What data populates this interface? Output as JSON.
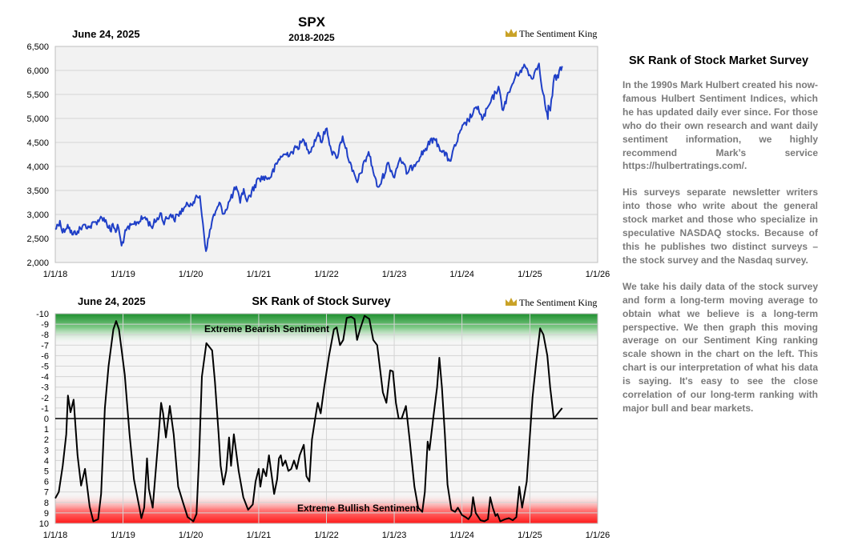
{
  "colors": {
    "price_line": "#1f3fc7",
    "rank_line": "#000000",
    "bear_zone": "#1e8f2e",
    "bull_zone": "#ff1a1a",
    "text_gray": "#7a7a7a",
    "crown": "#c9a227"
  },
  "brand": "The Sentiment King",
  "top_chart": {
    "date": "June 24, 2025",
    "title": "SPX",
    "subtitle": "2018-2025"
  },
  "bottom_chart": {
    "date": "June 24, 2025",
    "title": "SK Rank of Stock Survey",
    "bear_label": "Extreme Bearish Sentiment",
    "bull_label": "Extreme Bullish Sentiment"
  },
  "chart_data": [
    {
      "type": "line",
      "title": "SPX",
      "subtitle": "2018-2025",
      "x_tick_labels": [
        "1/1/18",
        "1/1/19",
        "1/1/20",
        "1/1/21",
        "1/1/22",
        "1/1/23",
        "1/1/24",
        "1/1/25",
        "1/1/26"
      ],
      "y_tick_labels": [
        "2,000",
        "2,500",
        "3,000",
        "3,500",
        "4,000",
        "4,500",
        "5,000",
        "5,500",
        "6,000",
        "6,500"
      ],
      "xlim": [
        "2018-01-01",
        "2026-01-01"
      ],
      "ylim": [
        2000,
        6500
      ],
      "grid": true,
      "series": [
        {
          "points": [
            [
              "2018-01-01",
              2690
            ],
            [
              "2018-01-26",
              2870
            ],
            [
              "2018-02-09",
              2620
            ],
            [
              "2018-03-09",
              2790
            ],
            [
              "2018-04-02",
              2580
            ],
            [
              "2018-05-01",
              2650
            ],
            [
              "2018-06-12",
              2790
            ],
            [
              "2018-07-02",
              2730
            ],
            [
              "2018-08-29",
              2910
            ],
            [
              "2018-09-20",
              2930
            ],
            [
              "2018-10-29",
              2640
            ],
            [
              "2018-11-07",
              2810
            ],
            [
              "2018-11-23",
              2630
            ],
            [
              "2018-12-03",
              2790
            ],
            [
              "2018-12-24",
              2350
            ],
            [
              "2019-01-18",
              2670
            ],
            [
              "2019-03-01",
              2800
            ],
            [
              "2019-04-30",
              2945
            ],
            [
              "2019-06-03",
              2745
            ],
            [
              "2019-07-26",
              3025
            ],
            [
              "2019-08-05",
              2845
            ],
            [
              "2019-09-15",
              3005
            ],
            [
              "2019-10-02",
              2890
            ],
            [
              "2019-11-25",
              3135
            ],
            [
              "2019-12-31",
              3230
            ],
            [
              "2020-02-19",
              3385
            ],
            [
              "2020-03-23",
              2235
            ],
            [
              "2020-04-29",
              2940
            ],
            [
              "2020-06-08",
              3230
            ],
            [
              "2020-06-26",
              3010
            ],
            [
              "2020-09-02",
              3580
            ],
            [
              "2020-09-23",
              3240
            ],
            [
              "2020-10-12",
              3535
            ],
            [
              "2020-10-30",
              3270
            ],
            [
              "2020-12-31",
              3756
            ],
            [
              "2021-03-04",
              3770
            ],
            [
              "2021-04-29",
              4210
            ],
            [
              "2021-06-30",
              4300
            ],
            [
              "2021-09-02",
              4540
            ],
            [
              "2021-10-04",
              4300
            ],
            [
              "2021-11-18",
              4705
            ],
            [
              "2021-12-01",
              4510
            ],
            [
              "2022-01-03",
              4795
            ],
            [
              "2022-01-27",
              4330
            ],
            [
              "2022-02-24",
              4170
            ],
            [
              "2022-03-29",
              4630
            ],
            [
              "2022-05-20",
              3900
            ],
            [
              "2022-06-16",
              3670
            ],
            [
              "2022-08-16",
              4305
            ],
            [
              "2022-09-30",
              3590
            ],
            [
              "2022-10-12",
              3580
            ],
            [
              "2022-12-01",
              4080
            ],
            [
              "2022-12-28",
              3780
            ],
            [
              "2023-02-02",
              4180
            ],
            [
              "2023-03-13",
              3855
            ],
            [
              "2023-07-31",
              4590
            ],
            [
              "2023-10-27",
              4115
            ],
            [
              "2023-12-29",
              4770
            ],
            [
              "2024-03-28",
              5250
            ],
            [
              "2024-04-19",
              4970
            ],
            [
              "2024-07-16",
              5665
            ],
            [
              "2024-08-05",
              5185
            ],
            [
              "2024-10-14",
              5860
            ],
            [
              "2024-11-11",
              6000
            ],
            [
              "2024-12-06",
              6090
            ],
            [
              "2025-01-10",
              5830
            ],
            [
              "2025-02-19",
              6145
            ],
            [
              "2025-03-13",
              5520
            ],
            [
              "2025-04-08",
              4985
            ],
            [
              "2025-04-10",
              5270
            ],
            [
              "2025-04-21",
              5160
            ],
            [
              "2025-05-13",
              5890
            ],
            [
              "2025-05-23",
              5800
            ],
            [
              "2025-06-24",
              6090
            ]
          ]
        }
      ]
    },
    {
      "type": "line",
      "title": "SK Rank of Stock Survey",
      "x_tick_labels": [
        "1/1/18",
        "1/1/19",
        "1/1/20",
        "1/1/21",
        "1/1/22",
        "1/1/23",
        "1/1/24",
        "1/1/25",
        "1/1/26"
      ],
      "y_tick_labels": [
        "-10",
        "-9",
        "-8",
        "-7",
        "-6",
        "-5",
        "-4",
        "-3",
        "-2",
        "-1",
        "0",
        "1",
        "2",
        "3",
        "4",
        "5",
        "6",
        "7",
        "8",
        "9",
        "10"
      ],
      "xlim": [
        "2018-01-01",
        "2026-01-01"
      ],
      "ylim": [
        -10,
        10
      ],
      "y_inverted": true,
      "grid": true,
      "annotations": [
        "Extreme Bearish Sentiment",
        "Extreme Bullish Sentiment"
      ],
      "series": [
        {
          "points": [
            [
              "2018-01-01",
              7.6
            ],
            [
              "2018-01-20",
              7
            ],
            [
              "2018-02-10",
              4.5
            ],
            [
              "2018-03-01",
              1.5
            ],
            [
              "2018-03-10",
              -2.2
            ],
            [
              "2018-03-24",
              -0.6
            ],
            [
              "2018-04-10",
              -1.8
            ],
            [
              "2018-05-01",
              3.5
            ],
            [
              "2018-05-20",
              6.4
            ],
            [
              "2018-06-10",
              4.8
            ],
            [
              "2018-07-05",
              8.4
            ],
            [
              "2018-07-25",
              9.8
            ],
            [
              "2018-08-20",
              9.6
            ],
            [
              "2018-09-05",
              7.2
            ],
            [
              "2018-09-25",
              -1
            ],
            [
              "2018-10-15",
              -5
            ],
            [
              "2018-11-10",
              -8.5
            ],
            [
              "2018-11-25",
              -9.3
            ],
            [
              "2018-12-10",
              -8.5
            ],
            [
              "2019-01-10",
              -4.2
            ],
            [
              "2019-02-05",
              1.5
            ],
            [
              "2019-03-01",
              5.8
            ],
            [
              "2019-04-10",
              9.5
            ],
            [
              "2019-04-25",
              8.5
            ],
            [
              "2019-05-10",
              3.8
            ],
            [
              "2019-05-20",
              6.7
            ],
            [
              "2019-06-10",
              8.5
            ],
            [
              "2019-07-10",
              2
            ],
            [
              "2019-07-25",
              -1.5
            ],
            [
              "2019-08-05",
              -0.5
            ],
            [
              "2019-08-20",
              1.8
            ],
            [
              "2019-09-10",
              -1.2
            ],
            [
              "2019-10-01",
              1.5
            ],
            [
              "2019-10-25",
              6.5
            ],
            [
              "2019-11-20",
              8
            ],
            [
              "2019-12-15",
              9.4
            ],
            [
              "2020-01-15",
              9.8
            ],
            [
              "2020-02-01",
              9.1
            ],
            [
              "2020-02-15",
              3.5
            ],
            [
              "2020-03-01",
              -4
            ],
            [
              "2020-03-25",
              -7.2
            ],
            [
              "2020-04-25",
              -6.5
            ],
            [
              "2020-05-10",
              -3.5
            ],
            [
              "2020-05-30",
              1.5
            ],
            [
              "2020-06-10",
              4.5
            ],
            [
              "2020-06-25",
              6.3
            ],
            [
              "2020-07-10",
              5
            ],
            [
              "2020-07-25",
              1.8
            ],
            [
              "2020-08-05",
              4.5
            ],
            [
              "2020-08-20",
              1.5
            ],
            [
              "2020-09-15",
              5
            ],
            [
              "2020-10-10",
              7.5
            ],
            [
              "2020-11-05",
              8.7
            ],
            [
              "2020-11-30",
              8.2
            ],
            [
              "2020-12-15",
              6
            ],
            [
              "2021-01-01",
              4.8
            ],
            [
              "2021-01-10",
              6.5
            ],
            [
              "2021-01-25",
              4.8
            ],
            [
              "2021-02-10",
              5.5
            ],
            [
              "2021-02-25",
              3.5
            ],
            [
              "2021-03-10",
              5.2
            ],
            [
              "2021-03-25",
              7.2
            ],
            [
              "2021-04-10",
              5.8
            ],
            [
              "2021-04-20",
              3.8
            ],
            [
              "2021-04-30",
              3.5
            ],
            [
              "2021-05-10",
              4.5
            ],
            [
              "2021-05-25",
              4
            ],
            [
              "2021-06-10",
              5
            ],
            [
              "2021-06-25",
              4.8
            ],
            [
              "2021-07-10",
              4
            ],
            [
              "2021-07-25",
              4.8
            ],
            [
              "2021-08-10",
              3.5
            ],
            [
              "2021-09-01",
              2.5
            ],
            [
              "2021-09-15",
              5.5
            ],
            [
              "2021-10-01",
              6
            ],
            [
              "2021-10-15",
              2
            ],
            [
              "2021-11-01",
              0
            ],
            [
              "2021-11-15",
              -1.5
            ],
            [
              "2021-12-01",
              -0.5
            ],
            [
              "2021-12-20",
              -3
            ],
            [
              "2022-01-15",
              -6
            ],
            [
              "2022-02-10",
              -8.5
            ],
            [
              "2022-02-25",
              -8.7
            ],
            [
              "2022-03-15",
              -7
            ],
            [
              "2022-04-01",
              -7.5
            ],
            [
              "2022-04-20",
              -9.6
            ],
            [
              "2022-05-15",
              -9.7
            ],
            [
              "2022-06-01",
              -9.5
            ],
            [
              "2022-06-15",
              -7.5
            ],
            [
              "2022-07-01",
              -8.5
            ],
            [
              "2022-07-25",
              -9.8
            ],
            [
              "2022-08-20",
              -9.5
            ],
            [
              "2022-09-10",
              -7.5
            ],
            [
              "2022-10-01",
              -7
            ],
            [
              "2022-11-01",
              -2.5
            ],
            [
              "2022-11-20",
              -1.5
            ],
            [
              "2022-12-10",
              -4.6
            ],
            [
              "2022-12-25",
              -4.5
            ],
            [
              "2023-01-10",
              -1.5
            ],
            [
              "2023-01-25",
              0
            ],
            [
              "2023-02-10",
              0
            ],
            [
              "2023-03-05",
              -1.2
            ],
            [
              "2023-03-25",
              2
            ],
            [
              "2023-04-20",
              6.5
            ],
            [
              "2023-05-10",
              8.5
            ],
            [
              "2023-06-01",
              8.9
            ],
            [
              "2023-06-15",
              7
            ],
            [
              "2023-06-30",
              2.2
            ],
            [
              "2023-07-10",
              3
            ],
            [
              "2023-07-30",
              0
            ],
            [
              "2023-08-20",
              -3
            ],
            [
              "2023-09-01",
              -5.8
            ],
            [
              "2023-09-15",
              -3
            ],
            [
              "2023-10-01",
              1.5
            ],
            [
              "2023-10-15",
              6.3
            ],
            [
              "2023-11-05",
              8.7
            ],
            [
              "2023-11-25",
              8.9
            ],
            [
              "2023-12-10",
              8.5
            ],
            [
              "2024-01-01",
              9.2
            ],
            [
              "2024-01-20",
              9.4
            ],
            [
              "2024-02-05",
              9.6
            ],
            [
              "2024-02-20",
              9.2
            ],
            [
              "2024-03-01",
              7.5
            ],
            [
              "2024-03-15",
              9
            ],
            [
              "2024-04-10",
              9.7
            ],
            [
              "2024-05-01",
              9.8
            ],
            [
              "2024-05-20",
              9.6
            ],
            [
              "2024-06-01",
              7.5
            ],
            [
              "2024-06-15",
              8.5
            ],
            [
              "2024-06-30",
              9.3
            ],
            [
              "2024-07-10",
              9.1
            ],
            [
              "2024-07-25",
              9.8
            ],
            [
              "2024-08-20",
              9.6
            ],
            [
              "2024-09-10",
              9.5
            ],
            [
              "2024-10-01",
              9.7
            ],
            [
              "2024-10-20",
              9.4
            ],
            [
              "2024-11-05",
              6.5
            ],
            [
              "2024-11-20",
              8.5
            ],
            [
              "2024-12-15",
              6
            ],
            [
              "2025-01-15",
              -2
            ],
            [
              "2025-02-05",
              -5.5
            ],
            [
              "2025-02-25",
              -8.6
            ],
            [
              "2025-03-15",
              -8
            ],
            [
              "2025-04-05",
              -6
            ],
            [
              "2025-04-20",
              -3
            ],
            [
              "2025-05-10",
              0
            ],
            [
              "2025-06-24",
              -1
            ]
          ]
        }
      ]
    }
  ],
  "sidebar": {
    "heading": "SK Rank of Stock Market Survey",
    "paragraphs": [
      "In the 1990s Mark Hulbert created his now-famous Hulbert Sentiment Indices, which he has updated daily ever since. For those who do their own research and want daily sentiment information, we highly recommend Mark’s service https://hulbertratings.com/.",
      "His surveys separate newsletter writers into those who write about the general stock market and those who specialize in speculative NASDAQ stocks. Because of this he publishes two distinct surveys – the stock survey and the Nasdaq survey.",
      "We take his daily data of the stock survey and form a long-term moving average to obtain what we believe is a long-term perspective. We then graph this moving average on our Sentiment King ranking scale shown in the chart on the left. This chart is our interpretation of what his data is saying. It's easy to see the close correlation of our long-term ranking with major bull and bear markets."
    ]
  }
}
